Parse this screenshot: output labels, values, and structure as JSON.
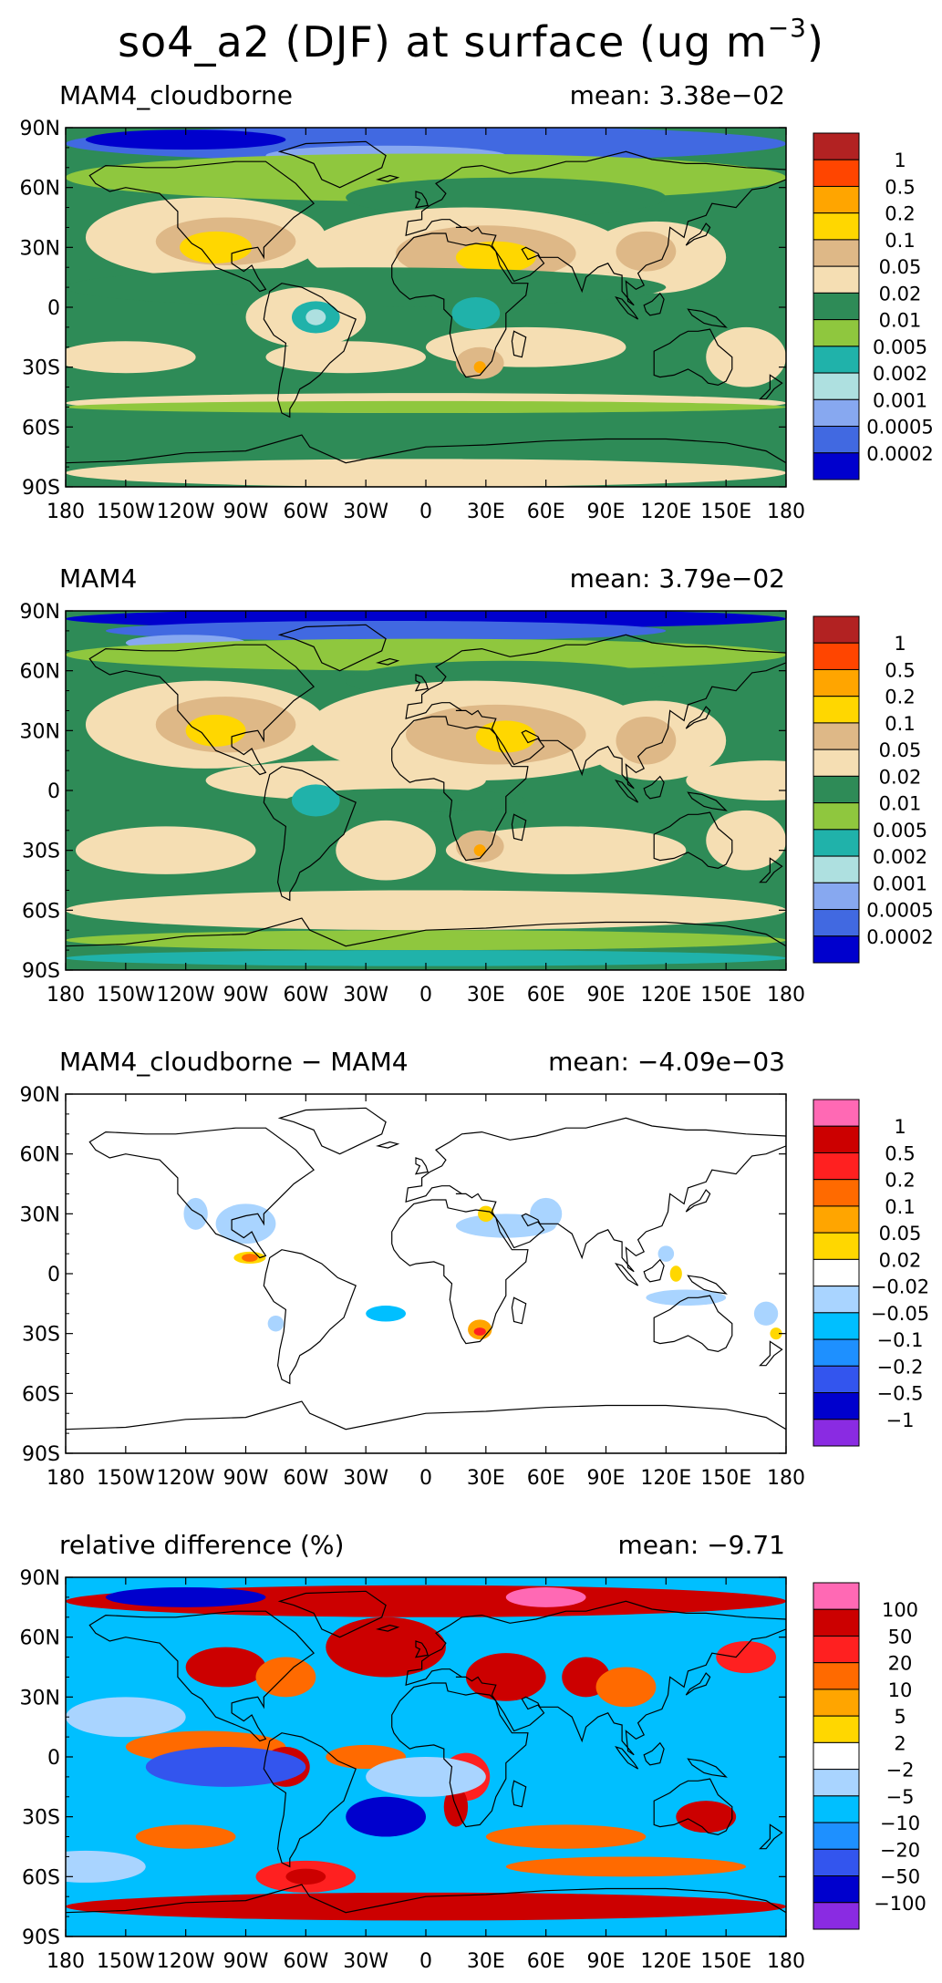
{
  "title": {
    "main": "so4_a2 (DJF) at surface (ug m",
    "exponent": "−3",
    "close": ")"
  },
  "lat_ticks": [
    "90N",
    "60N",
    "30N",
    "0",
    "30S",
    "60S",
    "90S"
  ],
  "lon_ticks": [
    "180",
    "150W",
    "120W",
    "90W",
    "60W",
    "30W",
    "0",
    "30E",
    "60E",
    "90E",
    "120E",
    "150E",
    "180"
  ],
  "panels": [
    {
      "id": "cloudborne",
      "label": "MAM4_cloudborne",
      "mean_text": "mean: 3.38e−02",
      "mean_value": 0.0338,
      "colorbar": {
        "labels": [
          "1",
          "0.5",
          "0.2",
          "0.1",
          "0.05",
          "0.02",
          "0.01",
          "0.005",
          "0.002",
          "0.001",
          "0.0005",
          "0.0002"
        ],
        "colors": [
          "#b22222",
          "#ff4500",
          "#ffa500",
          "#ffd700",
          "#deb887",
          "#f5deb3",
          "#2e8b57",
          "#8fc73e",
          "#20b2aa",
          "#aee0e0",
          "#87a8f0",
          "#4169e1",
          "#0000cd"
        ]
      }
    },
    {
      "id": "mam4",
      "label": "MAM4",
      "mean_text": "mean: 3.79e−02",
      "mean_value": 0.0379,
      "colorbar": {
        "labels": [
          "1",
          "0.5",
          "0.2",
          "0.1",
          "0.05",
          "0.02",
          "0.01",
          "0.005",
          "0.002",
          "0.001",
          "0.0005",
          "0.0002"
        ],
        "colors": [
          "#b22222",
          "#ff4500",
          "#ffa500",
          "#ffd700",
          "#deb887",
          "#f5deb3",
          "#2e8b57",
          "#8fc73e",
          "#20b2aa",
          "#aee0e0",
          "#87a8f0",
          "#4169e1",
          "#0000cd"
        ]
      }
    },
    {
      "id": "difference",
      "label": "MAM4_cloudborne − MAM4",
      "mean_text": "mean: −4.09e−03",
      "mean_value": -0.00409,
      "colorbar": {
        "labels": [
          "1",
          "0.5",
          "0.2",
          "0.1",
          "0.05",
          "0.02",
          "−0.02",
          "−0.05",
          "−0.1",
          "−0.2",
          "−0.5",
          "−1"
        ],
        "colors": [
          "#ff69b4",
          "#cc0000",
          "#ff2020",
          "#ff6a00",
          "#ffa500",
          "#ffd700",
          "#ffffff",
          "#a9d4ff",
          "#00bfff",
          "#1e90ff",
          "#3355ee",
          "#0000cd",
          "#8a2be2"
        ]
      }
    },
    {
      "id": "relative",
      "label": "relative difference (%)",
      "mean_text": "mean: −9.71",
      "mean_value": -9.71,
      "colorbar": {
        "labels": [
          "100",
          "50",
          "20",
          "10",
          "5",
          "2",
          "−2",
          "−5",
          "−10",
          "−20",
          "−50",
          "−100"
        ],
        "colors": [
          "#ff69b4",
          "#cc0000",
          "#ff2020",
          "#ff6a00",
          "#ffa500",
          "#ffd700",
          "#ffffff",
          "#a9d4ff",
          "#00bfff",
          "#1e90ff",
          "#3355ee",
          "#0000cd",
          "#8a2be2"
        ]
      }
    }
  ]
}
